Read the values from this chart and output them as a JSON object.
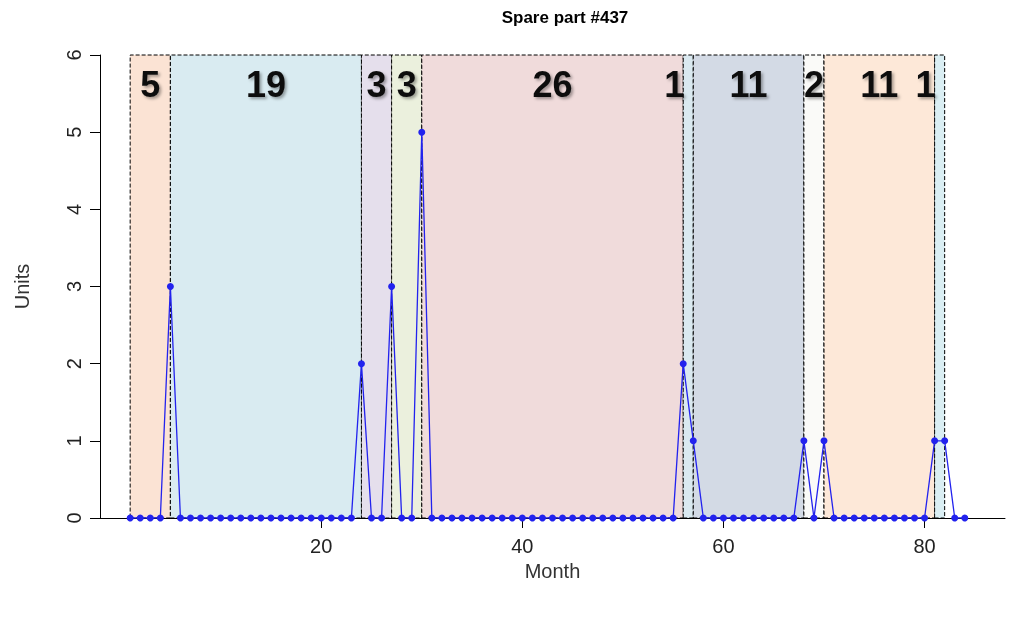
{
  "chart_data": {
    "type": "line",
    "title": "Spare part #437",
    "xlabel": "Month",
    "ylabel": "Units",
    "x": [
      1,
      2,
      3,
      4,
      5,
      6,
      7,
      8,
      9,
      10,
      11,
      12,
      13,
      14,
      15,
      16,
      17,
      18,
      19,
      20,
      21,
      22,
      23,
      24,
      25,
      26,
      27,
      28,
      29,
      30,
      31,
      32,
      33,
      34,
      35,
      36,
      37,
      38,
      39,
      40,
      41,
      42,
      43,
      44,
      45,
      46,
      47,
      48,
      49,
      50,
      51,
      52,
      53,
      54,
      55,
      56,
      57,
      58,
      59,
      60,
      61,
      62,
      63,
      64,
      65,
      66,
      67,
      68,
      69,
      70,
      71,
      72,
      73,
      74,
      75,
      76,
      77,
      78,
      79,
      80,
      81,
      82,
      83,
      84
    ],
    "series": [
      {
        "color": "#2222ee",
        "values": [
          0,
          0,
          0,
          0,
          3,
          0,
          0,
          0,
          0,
          0,
          0,
          0,
          0,
          0,
          0,
          0,
          0,
          0,
          0,
          0,
          0,
          0,
          0,
          2,
          0,
          0,
          3,
          0,
          0,
          5,
          0,
          0,
          0,
          0,
          0,
          0,
          0,
          0,
          0,
          0,
          0,
          0,
          0,
          0,
          0,
          0,
          0,
          0,
          0,
          0,
          0,
          0,
          0,
          0,
          0,
          2,
          1,
          0,
          0,
          0,
          0,
          0,
          0,
          0,
          0,
          0,
          0,
          1,
          0,
          1,
          0,
          0,
          0,
          0,
          0,
          0,
          0,
          0,
          0,
          0,
          1,
          1,
          0,
          0
        ]
      }
    ],
    "xlim": [
      -2,
      88
    ],
    "xticks": [
      20,
      40,
      60,
      80
    ],
    "ylim": [
      0,
      6
    ],
    "yticks": [
      0,
      1,
      2,
      3,
      4,
      5,
      6
    ],
    "marker": "circle",
    "bands": [
      {
        "axis": "x",
        "from": 1,
        "to": 5,
        "label": "5",
        "color": "#fbe3d4"
      },
      {
        "axis": "x",
        "from": 5,
        "to": 24,
        "label": "19",
        "color": "#d9ebf1"
      },
      {
        "axis": "x",
        "from": 24,
        "to": 27,
        "label": "3",
        "color": "#e5dfec"
      },
      {
        "axis": "x",
        "from": 27,
        "to": 30,
        "label": "3",
        "color": "#ebf0dd"
      },
      {
        "axis": "x",
        "from": 30,
        "to": 56,
        "label": "26",
        "color": "#f0dbdb"
      },
      {
        "axis": "x",
        "from": 56,
        "to": 57,
        "label": "1",
        "color": "#dae9f0"
      },
      {
        "axis": "x",
        "from": 57,
        "to": 68,
        "label": "11",
        "color": "#d3dae5"
      },
      {
        "axis": "x",
        "from": 68,
        "to": 70,
        "label": "2",
        "color": "#fafaf8"
      },
      {
        "axis": "x",
        "from": 70,
        "to": 81,
        "label": "11",
        "color": "#fde8d8"
      },
      {
        "axis": "x",
        "from": 81,
        "to": 82,
        "label": "1",
        "color": "#daeef3"
      }
    ]
  }
}
